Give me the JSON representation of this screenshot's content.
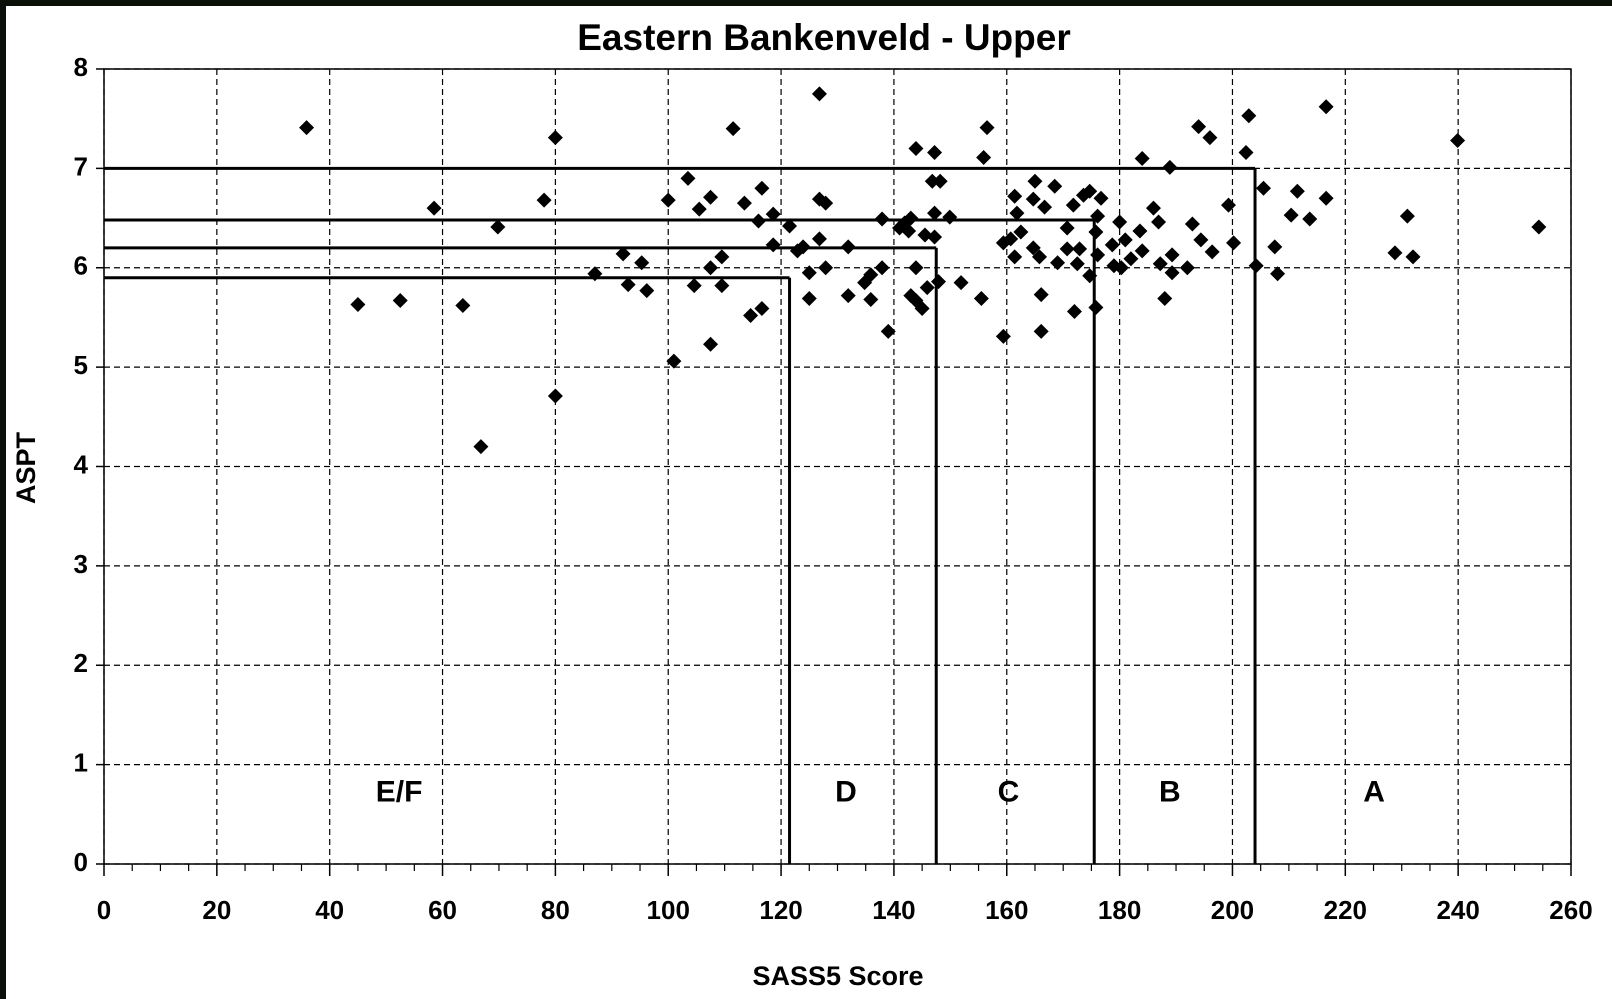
{
  "chart_data": {
    "type": "scatter",
    "title": "Eastern Bankenveld - Upper",
    "x_label": "SASS5 Score",
    "y_label": "ASPT",
    "xlim": [
      0,
      260
    ],
    "ylim": [
      0,
      8
    ],
    "xticks": [
      0,
      20,
      40,
      60,
      80,
      100,
      120,
      140,
      160,
      180,
      200,
      220,
      240,
      260
    ],
    "yticks": [
      0,
      1,
      2,
      3,
      4,
      5,
      6,
      7,
      8
    ],
    "grid": true,
    "series": [
      {
        "color": "#000000",
        "x": [
          35.9,
          45,
          52.5,
          58.5,
          63.6,
          66.8,
          69.8,
          78,
          80,
          80,
          87,
          92,
          92.9,
          95.3,
          96.2,
          100,
          101,
          103.5,
          104.6,
          105.5,
          107.5,
          107.5,
          107.5,
          109.5,
          109.5,
          111.5,
          113.5,
          114.6,
          116,
          116.6,
          116.6,
          118.6,
          118.6,
          121.5,
          122.9,
          123.9,
          125,
          125,
          126.8,
          126.8,
          126.8,
          127.9,
          127.9,
          131.9,
          131.9,
          134.8,
          135.9,
          135.9,
          137.9,
          137.9,
          139,
          141,
          141.9,
          142.6,
          143,
          143,
          143.9,
          143.9,
          143.9,
          145,
          145.5,
          145.9,
          146.8,
          147.2,
          147.2,
          147.2,
          147.9,
          148.2,
          149.9,
          151.9,
          155.5,
          155.9,
          156.5,
          159.4,
          159.4,
          160.7,
          161.4,
          161.4,
          161.8,
          162.5,
          164.7,
          164.7,
          165,
          165.8,
          166.1,
          166.1,
          166.7,
          168.5,
          169,
          170.7,
          170.7,
          171.8,
          172,
          172.5,
          172.9,
          173.6,
          174.7,
          174.7,
          175.8,
          175.8,
          176.1,
          176.1,
          176.7,
          178.7,
          179,
          180,
          180.3,
          181,
          182,
          183.6,
          184,
          184,
          186,
          186.9,
          187.2,
          188,
          188.9,
          189.3,
          189.3,
          192,
          192.9,
          194,
          194.4,
          196,
          196.4,
          199.3,
          200.2,
          202.4,
          202.9,
          204.2,
          205.5,
          207.5,
          208,
          210.4,
          211.5,
          213.7,
          216.6,
          216.6,
          228.8,
          231,
          232,
          239.9,
          254.3
        ],
        "values": [
          7.41,
          5.63,
          5.67,
          6.6,
          5.62,
          4.2,
          6.41,
          6.68,
          7.31,
          4.71,
          5.94,
          6.14,
          5.83,
          6.05,
          5.77,
          6.68,
          5.06,
          6.9,
          5.82,
          6.59,
          6.71,
          6.0,
          5.23,
          6.11,
          5.82,
          7.4,
          6.65,
          5.52,
          6.47,
          6.8,
          5.59,
          6.54,
          6.23,
          6.42,
          6.17,
          6.21,
          5.69,
          5.95,
          7.75,
          6.69,
          6.29,
          6.65,
          6.0,
          6.21,
          5.72,
          5.85,
          5.68,
          5.93,
          6.0,
          6.49,
          5.36,
          6.4,
          6.45,
          6.37,
          6.5,
          5.72,
          6.0,
          5.67,
          7.2,
          5.59,
          6.33,
          5.8,
          6.87,
          7.16,
          6.55,
          6.31,
          5.86,
          6.87,
          6.51,
          5.85,
          5.69,
          7.11,
          7.41,
          5.31,
          6.25,
          6.29,
          6.72,
          6.11,
          6.55,
          6.36,
          6.69,
          6.2,
          6.87,
          6.11,
          5.73,
          5.36,
          6.61,
          6.82,
          6.05,
          6.4,
          6.19,
          6.63,
          5.56,
          6.04,
          6.19,
          6.73,
          6.77,
          5.92,
          5.6,
          6.36,
          6.52,
          6.13,
          6.7,
          6.23,
          6.02,
          6.46,
          6.0,
          6.28,
          6.09,
          6.37,
          6.17,
          7.1,
          6.6,
          6.46,
          6.04,
          5.69,
          7.01,
          6.13,
          5.95,
          6.0,
          6.44,
          7.42,
          6.28,
          7.31,
          6.16,
          6.63,
          6.25,
          7.16,
          7.53,
          6.02,
          6.8,
          6.21,
          5.94,
          6.53,
          6.77,
          6.49,
          7.62,
          6.7,
          6.15,
          6.52,
          6.11,
          7.28,
          6.41
        ]
      }
    ],
    "boundaries": [
      {
        "x": 204,
        "y": 7
      },
      {
        "x": 175.5,
        "y": 6.48
      },
      {
        "x": 147.5,
        "y": 6.2
      },
      {
        "x": 121.5,
        "y": 5.9
      }
    ],
    "zone_labels": [
      {
        "text": "E/F",
        "x": 52.3,
        "y": 0.71
      },
      {
        "text": "D",
        "x": 131.5,
        "y": 0.71
      },
      {
        "text": "C",
        "x": 160.3,
        "y": 0.71
      },
      {
        "text": "B",
        "x": 188.9,
        "y": 0.71
      },
      {
        "text": "A",
        "x": 225.1,
        "y": 0.71
      }
    ]
  }
}
